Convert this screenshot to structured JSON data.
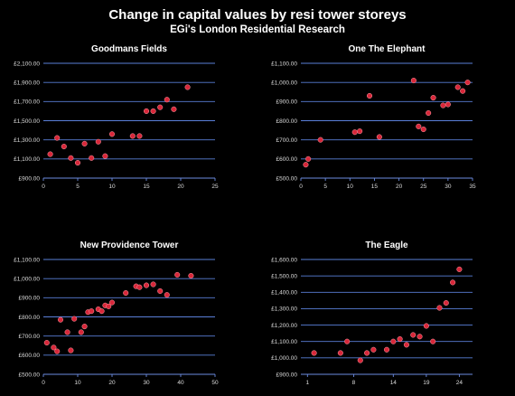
{
  "title": "Change in capital values by resi tower storeys",
  "subtitle": "EGi's London Residential Research",
  "chart_data": [
    {
      "type": "scatter",
      "title": "Goodmans Fields",
      "xlim": [
        0,
        25
      ],
      "ylim": [
        900,
        2100
      ],
      "xticks": [
        0,
        5,
        10,
        15,
        20,
        25
      ],
      "xtick_labels": [
        "0",
        "5",
        "10",
        "15",
        "20",
        "25"
      ],
      "yticks": [
        900,
        1100,
        1300,
        1500,
        1700,
        1900,
        2100
      ],
      "ytick_labels": [
        "£900.00",
        "£1,100.00",
        "£1,300.00",
        "£1,500.00",
        "£1,700.00",
        "£1,900.00",
        "£2,100.00"
      ],
      "grid": true,
      "points": [
        {
          "x": 1,
          "y": 1150
        },
        {
          "x": 2,
          "y": 1320
        },
        {
          "x": 3,
          "y": 1230
        },
        {
          "x": 4,
          "y": 1110
        },
        {
          "x": 5,
          "y": 1060
        },
        {
          "x": 6,
          "y": 1260
        },
        {
          "x": 7,
          "y": 1110
        },
        {
          "x": 8,
          "y": 1280
        },
        {
          "x": 9,
          "y": 1130
        },
        {
          "x": 10,
          "y": 1360
        },
        {
          "x": 13,
          "y": 1340
        },
        {
          "x": 14,
          "y": 1340
        },
        {
          "x": 15,
          "y": 1600
        },
        {
          "x": 16,
          "y": 1600
        },
        {
          "x": 17,
          "y": 1640
        },
        {
          "x": 18,
          "y": 1720
        },
        {
          "x": 19,
          "y": 1620
        },
        {
          "x": 21,
          "y": 1850
        }
      ]
    },
    {
      "type": "scatter",
      "title": "One The Elephant",
      "xlim": [
        0,
        35
      ],
      "ylim": [
        500,
        1100
      ],
      "xticks": [
        0,
        5,
        10,
        15,
        20,
        25,
        30,
        35
      ],
      "xtick_labels": [
        "0",
        "5",
        "10",
        "15",
        "20",
        "25",
        "30",
        "35"
      ],
      "yticks": [
        500,
        600,
        700,
        800,
        900,
        1000,
        1100
      ],
      "ytick_labels": [
        "£500.00",
        "£600.00",
        "£700.00",
        "£800.00",
        "£900.00",
        "£1,000.00",
        "£1,100.00"
      ],
      "grid": true,
      "points": [
        {
          "x": 1,
          "y": 570
        },
        {
          "x": 1.5,
          "y": 600
        },
        {
          "x": 4,
          "y": 700
        },
        {
          "x": 11,
          "y": 740
        },
        {
          "x": 12,
          "y": 745
        },
        {
          "x": 14,
          "y": 930
        },
        {
          "x": 16,
          "y": 715
        },
        {
          "x": 23,
          "y": 1010
        },
        {
          "x": 24,
          "y": 770
        },
        {
          "x": 25,
          "y": 755
        },
        {
          "x": 26,
          "y": 840
        },
        {
          "x": 27,
          "y": 920
        },
        {
          "x": 29,
          "y": 880
        },
        {
          "x": 30,
          "y": 885
        },
        {
          "x": 32,
          "y": 975
        },
        {
          "x": 33,
          "y": 955
        },
        {
          "x": 34,
          "y": 1000
        }
      ]
    },
    {
      "type": "scatter",
      "title": "New Providence Tower",
      "xlim": [
        0,
        50
      ],
      "ylim": [
        500,
        1100
      ],
      "xticks": [
        0,
        10,
        20,
        30,
        40,
        50
      ],
      "xtick_labels": [
        "0",
        "10",
        "20",
        "30",
        "40",
        "50"
      ],
      "yticks": [
        500,
        600,
        700,
        800,
        900,
        1000,
        1100
      ],
      "ytick_labels": [
        "£500.00",
        "£600.00",
        "£700.00",
        "£800.00",
        "£900.00",
        "£1,000.00",
        "£1,100.00"
      ],
      "grid": true,
      "points": [
        {
          "x": 1,
          "y": 665
        },
        {
          "x": 3,
          "y": 640
        },
        {
          "x": 4,
          "y": 620
        },
        {
          "x": 5,
          "y": 785
        },
        {
          "x": 7,
          "y": 720
        },
        {
          "x": 8,
          "y": 625
        },
        {
          "x": 9,
          "y": 790
        },
        {
          "x": 11,
          "y": 720
        },
        {
          "x": 12,
          "y": 750
        },
        {
          "x": 13,
          "y": 825
        },
        {
          "x": 14,
          "y": 830
        },
        {
          "x": 16,
          "y": 840
        },
        {
          "x": 17,
          "y": 830
        },
        {
          "x": 18,
          "y": 860
        },
        {
          "x": 19,
          "y": 855
        },
        {
          "x": 20,
          "y": 875
        },
        {
          "x": 24,
          "y": 925
        },
        {
          "x": 27,
          "y": 960
        },
        {
          "x": 28,
          "y": 955
        },
        {
          "x": 30,
          "y": 965
        },
        {
          "x": 32,
          "y": 970
        },
        {
          "x": 34,
          "y": 935
        },
        {
          "x": 36,
          "y": 915
        },
        {
          "x": 39,
          "y": 1020
        },
        {
          "x": 43,
          "y": 1015
        }
      ]
    },
    {
      "type": "scatter",
      "title": "The Eagle",
      "xlim": [
        0,
        26
      ],
      "ylim": [
        900,
        1600
      ],
      "xticks": [
        1,
        8,
        14,
        19,
        24
      ],
      "xtick_labels": [
        "1",
        "8",
        "14",
        "19",
        "24"
      ],
      "yticks": [
        900,
        1000,
        1100,
        1200,
        1300,
        1400,
        1500,
        1600
      ],
      "ytick_labels": [
        "£900.00",
        "£1,000.00",
        "£1,100.00",
        "£1,200.00",
        "£1,300.00",
        "£1,400.00",
        "£1,500.00",
        "£1,600.00"
      ],
      "grid": true,
      "points": [
        {
          "x": 2,
          "y": 1030
        },
        {
          "x": 6,
          "y": 1030
        },
        {
          "x": 7,
          "y": 1100
        },
        {
          "x": 9,
          "y": 985
        },
        {
          "x": 10,
          "y": 1030
        },
        {
          "x": 11,
          "y": 1050
        },
        {
          "x": 13,
          "y": 1050
        },
        {
          "x": 14,
          "y": 1100
        },
        {
          "x": 15,
          "y": 1115
        },
        {
          "x": 16,
          "y": 1080
        },
        {
          "x": 17,
          "y": 1140
        },
        {
          "x": 18,
          "y": 1130
        },
        {
          "x": 19,
          "y": 1195
        },
        {
          "x": 20,
          "y": 1100
        },
        {
          "x": 21,
          "y": 1305
        },
        {
          "x": 22,
          "y": 1335
        },
        {
          "x": 23,
          "y": 1460
        },
        {
          "x": 24,
          "y": 1540
        }
      ]
    }
  ]
}
